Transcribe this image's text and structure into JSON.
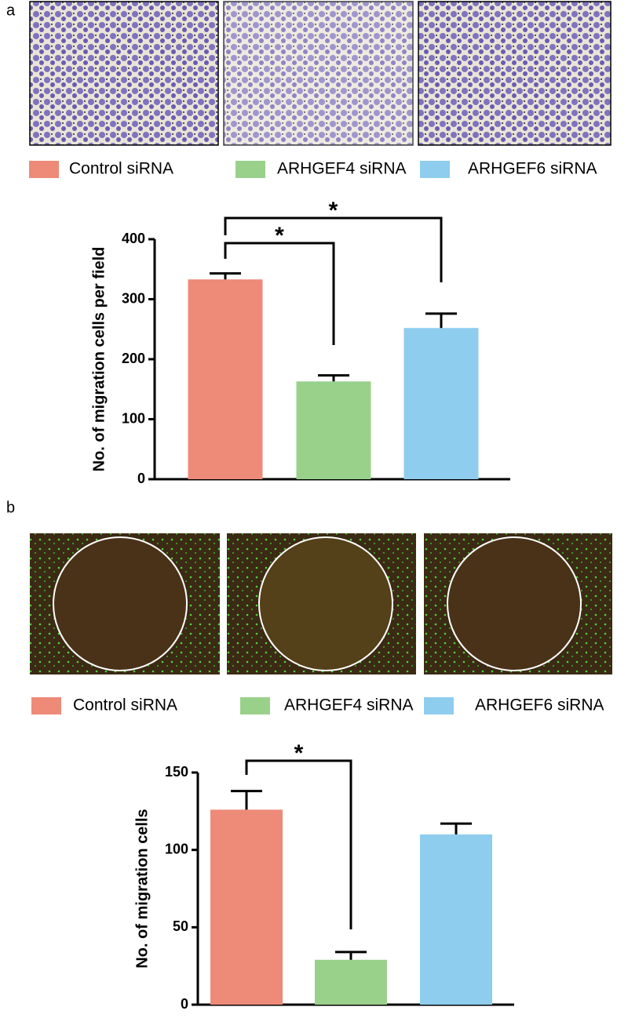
{
  "panel_labels": [
    "a",
    "b"
  ],
  "chart_data": [
    {
      "type": "bar",
      "ylabel": "No. of migration cells per field",
      "categories": [
        "Control siRNA",
        "ARHGEF4 siRNA",
        "ARHGEF6 siRNA"
      ],
      "values": [
        333,
        163,
        252
      ],
      "errors": [
        10,
        10,
        24
      ],
      "colors": [
        "#ee8a78",
        "#99d18b",
        "#8ecdee"
      ],
      "ylim": [
        0,
        400
      ],
      "yticks": [
        0,
        100,
        200,
        300,
        400
      ],
      "annotations": [
        "*",
        "*"
      ]
    },
    {
      "type": "bar",
      "ylabel": "No. of migration cells",
      "categories": [
        "Control siRNA",
        "ARHGEF4 siRNA",
        "ARHGEF6 siRNA"
      ],
      "values": [
        126,
        29,
        110
      ],
      "errors": [
        12,
        5,
        7
      ],
      "colors": [
        "#ee8a78",
        "#99d18b",
        "#8ecdee"
      ],
      "ylim": [
        0,
        150
      ],
      "yticks": [
        0,
        50,
        100,
        150
      ],
      "annotations": [
        "*"
      ]
    }
  ]
}
